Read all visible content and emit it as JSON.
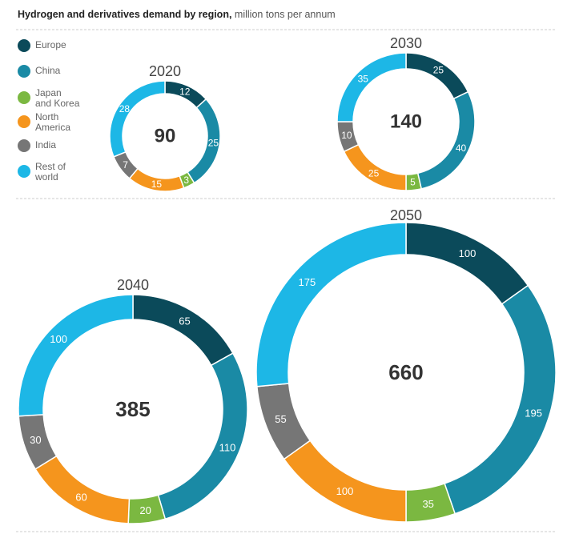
{
  "title": "Hydrogen and derivatives demand by region,",
  "subtitle": "million tons per annum",
  "colors": {
    "Europe": "#0b4a5a",
    "China": "#1a8aa5",
    "Japan and Korea": "#7bb841",
    "North America": "#f5951d",
    "India": "#767676",
    "Rest of world": "#1db7e6"
  },
  "legend": [
    {
      "key": "Europe",
      "label_lines": [
        "Europe"
      ]
    },
    {
      "key": "China",
      "label_lines": [
        "China"
      ]
    },
    {
      "key": "Japan and Korea",
      "label_lines": [
        "Japan",
        "and Korea"
      ]
    },
    {
      "key": "North America",
      "label_lines": [
        "North",
        "America"
      ]
    },
    {
      "key": "India",
      "label_lines": [
        "India"
      ]
    },
    {
      "key": "Rest of world",
      "label_lines": [
        "Rest of",
        "world"
      ]
    }
  ],
  "chart_data": [
    {
      "type": "donut",
      "year": "2020",
      "total": "90",
      "series": [
        {
          "name": "Europe",
          "value": 12
        },
        {
          "name": "China",
          "value": 25
        },
        {
          "name": "Japan and Korea",
          "value": 3
        },
        {
          "name": "North America",
          "value": 15
        },
        {
          "name": "India",
          "value": 7
        },
        {
          "name": "Rest of world",
          "value": 28
        }
      ]
    },
    {
      "type": "donut",
      "year": "2030",
      "total": "140",
      "series": [
        {
          "name": "Europe",
          "value": 25
        },
        {
          "name": "China",
          "value": 40
        },
        {
          "name": "Japan and Korea",
          "value": 5
        },
        {
          "name": "North America",
          "value": 25
        },
        {
          "name": "India",
          "value": 10
        },
        {
          "name": "Rest of world",
          "value": 35
        }
      ]
    },
    {
      "type": "donut",
      "year": "2040",
      "total": "385",
      "series": [
        {
          "name": "Europe",
          "value": 65
        },
        {
          "name": "China",
          "value": 110
        },
        {
          "name": "Japan and Korea",
          "value": 20
        },
        {
          "name": "North America",
          "value": 60
        },
        {
          "name": "India",
          "value": 30
        },
        {
          "name": "Rest of world",
          "value": 100
        }
      ]
    },
    {
      "type": "donut",
      "year": "2050",
      "total": "660",
      "series": [
        {
          "name": "Europe",
          "value": 100
        },
        {
          "name": "China",
          "value": 195
        },
        {
          "name": "Japan and Korea",
          "value": 35
        },
        {
          "name": "North America",
          "value": 100
        },
        {
          "name": "India",
          "value": 55
        },
        {
          "name": "Rest of world",
          "value": 175
        }
      ]
    }
  ]
}
